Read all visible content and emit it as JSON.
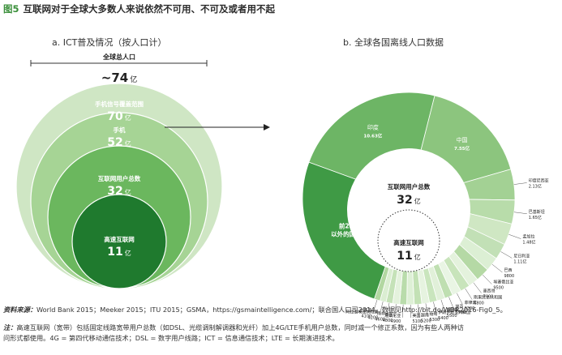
{
  "figure": {
    "label": "图5",
    "title": "互联网对于全球大多数人来说依然不可用、不可及或者用不起"
  },
  "panel_a": {
    "title": "a. ICT普及情况（按人口计）",
    "total_label": "全球总人口",
    "total_value": "~74",
    "unit": "亿"
  },
  "panel_b": {
    "title": "b. 全球各国离线人口数据"
  },
  "chart_data": [
    {
      "type": "nested-circles",
      "title": "a. ICT普及情况（按人口计）",
      "unit": "亿",
      "total": {
        "label": "全球总人口",
        "value": "~74"
      },
      "levels": [
        {
          "label": "手机信号覆盖范围",
          "value": 70,
          "color": "#cfe6c4"
        },
        {
          "label": "手机",
          "value": 52,
          "color": "#a6d495"
        },
        {
          "label": "互联网用户总数",
          "value": 32,
          "color": "#6bb75e"
        },
        {
          "label": "高速互联网",
          "value": 11,
          "color": "#1f7a2e"
        }
      ]
    },
    {
      "type": "pie",
      "title": "b. 全球各国离线人口数据",
      "center": {
        "label": "互联网用户总数",
        "value": "32",
        "unit": "亿"
      },
      "inner": {
        "label": "高速互联网",
        "value": "11",
        "unit": "亿"
      },
      "slices": [
        {
          "name": "印度",
          "value": "10.63亿",
          "n": 10.63,
          "color": "#6db565"
        },
        {
          "name": "中国",
          "value": "7.55亿",
          "n": 7.55,
          "color": "#8cc57e"
        },
        {
          "name": "印度尼西亚",
          "value": "2.13亿",
          "n": 2.13,
          "color": "#a3d194"
        },
        {
          "name": "巴基斯坦",
          "value": "1.65亿",
          "n": 1.65,
          "color": "#b8dcaa"
        },
        {
          "name": "孟加拉",
          "value": "1.48亿",
          "n": 1.48,
          "color": "#cfe7c3"
        },
        {
          "name": "尼日利亚",
          "value": "1.11亿",
          "n": 1.11,
          "color": "#c2e0b6"
        },
        {
          "name": "巴西",
          "value": "9800",
          "n": 0.98,
          "color": "#dcefd4"
        },
        {
          "name": "埃塞俄比亚",
          "value": "9500",
          "n": 0.95,
          "color": "#b5d9a5"
        },
        {
          "name": "墨西哥",
          "value": "7000",
          "n": 0.7,
          "color": "#e4f2dd"
        },
        {
          "name": "刚果民主共和国",
          "value": "6800",
          "n": 0.68,
          "color": "#c8e4bb"
        },
        {
          "name": "菲律宾",
          "value": "6300",
          "n": 0.63,
          "color": "#e9f5e4"
        },
        {
          "name": "埃及",
          "value": "5700",
          "n": 0.57,
          "color": "#bfdfb1"
        },
        {
          "name": "俄罗斯",
          "value": "5500",
          "n": 0.55,
          "color": "#e1f0d9"
        },
        {
          "name": "伊朗伊斯兰共和国",
          "value": "5400",
          "n": 0.54,
          "color": "#c9e5bd"
        },
        {
          "name": "缅甸",
          "value": "5300",
          "n": 0.53,
          "color": "#e6f3e0"
        },
        {
          "name": "越南",
          "value": "5200",
          "n": 0.52,
          "color": "#c3e1b5"
        },
        {
          "name": "美国",
          "value": "5100",
          "n": 0.51,
          "color": "#def0d6"
        },
        {
          "name": "坦桑尼亚",
          "value": "4900",
          "n": 0.49,
          "color": "#b9dcab"
        },
        {
          "name": "泰国",
          "value": "4800",
          "n": 0.48,
          "color": "#e4f2dd"
        },
        {
          "name": "南非",
          "value": "4600",
          "n": 0.46,
          "color": "#c5e2b8"
        },
        {
          "name": "阿拉伯埃及共和国",
          "value": "4200",
          "n": 0.42,
          "color": "#dbeed2"
        },
        {
          "name": "土耳其",
          "value": "4100",
          "n": 0.41,
          "color": "#b2d7a1"
        },
        {
          "name": "前20以外的国家",
          "label_lines": [
            "前20",
            "以外的国家"
          ],
          "n": 11.5,
          "color": "#3f9a45"
        }
      ]
    }
  ],
  "footer": {
    "source_key": "资料来源：",
    "source_text": "World Bank 2015；Meeker 2015；ITU 2015；GSMA，https://gsmaintelligence.com/；联合国人口司2014。数据见http://bit.do/WDR2016-Fig0_5。",
    "note_key": "注：",
    "note_line1": "高速互联网（宽带）包括固定线路宽带用户总数（如DSL、光缆调制解调器和光纤）加上4G/LTE手机用户总数，同时减一个修正系数，因为有些人两种访",
    "note_line2": "问形式都使用。4G = 第四代移动通信技术；DSL = 数字用户线路；ICT = 信息通信技术；LTE = 长期演进技术。"
  }
}
